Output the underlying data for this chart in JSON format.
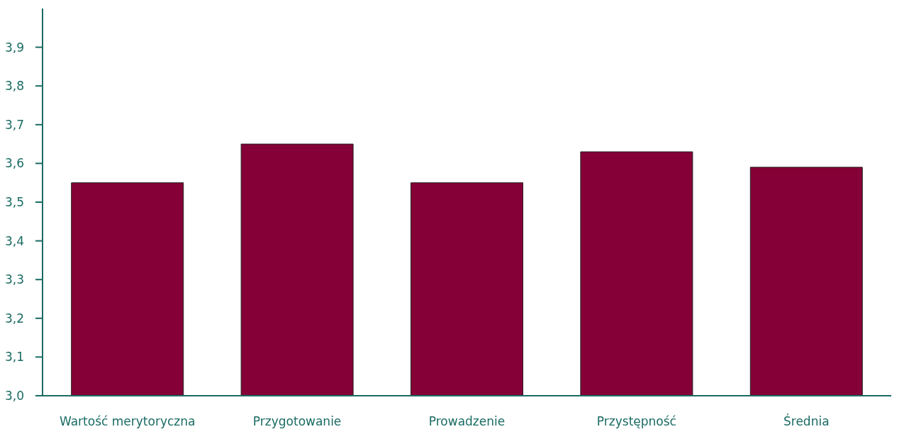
{
  "chart_data": {
    "type": "bar",
    "categories": [
      "Wartość merytoryczna",
      "Przygotowanie",
      "Prowadzenie",
      "Przystępność",
      "Średnia"
    ],
    "values": [
      3.55,
      3.65,
      3.55,
      3.63,
      3.59
    ],
    "color": "#850036",
    "ylim": [
      3.0,
      4.0
    ],
    "yticks": [
      {
        "value": 3.0,
        "label": "3,0"
      },
      {
        "value": 3.1,
        "label": "3,1"
      },
      {
        "value": 3.2,
        "label": "3,2"
      },
      {
        "value": 3.3,
        "label": "3,3"
      },
      {
        "value": 3.4,
        "label": "3,4"
      },
      {
        "value": 3.5,
        "label": "3,5"
      },
      {
        "value": 3.6,
        "label": "3,6"
      },
      {
        "value": 3.7,
        "label": "3,7"
      },
      {
        "value": 3.8,
        "label": "3,8"
      },
      {
        "value": 3.9,
        "label": "3,9"
      }
    ],
    "grid": false
  }
}
